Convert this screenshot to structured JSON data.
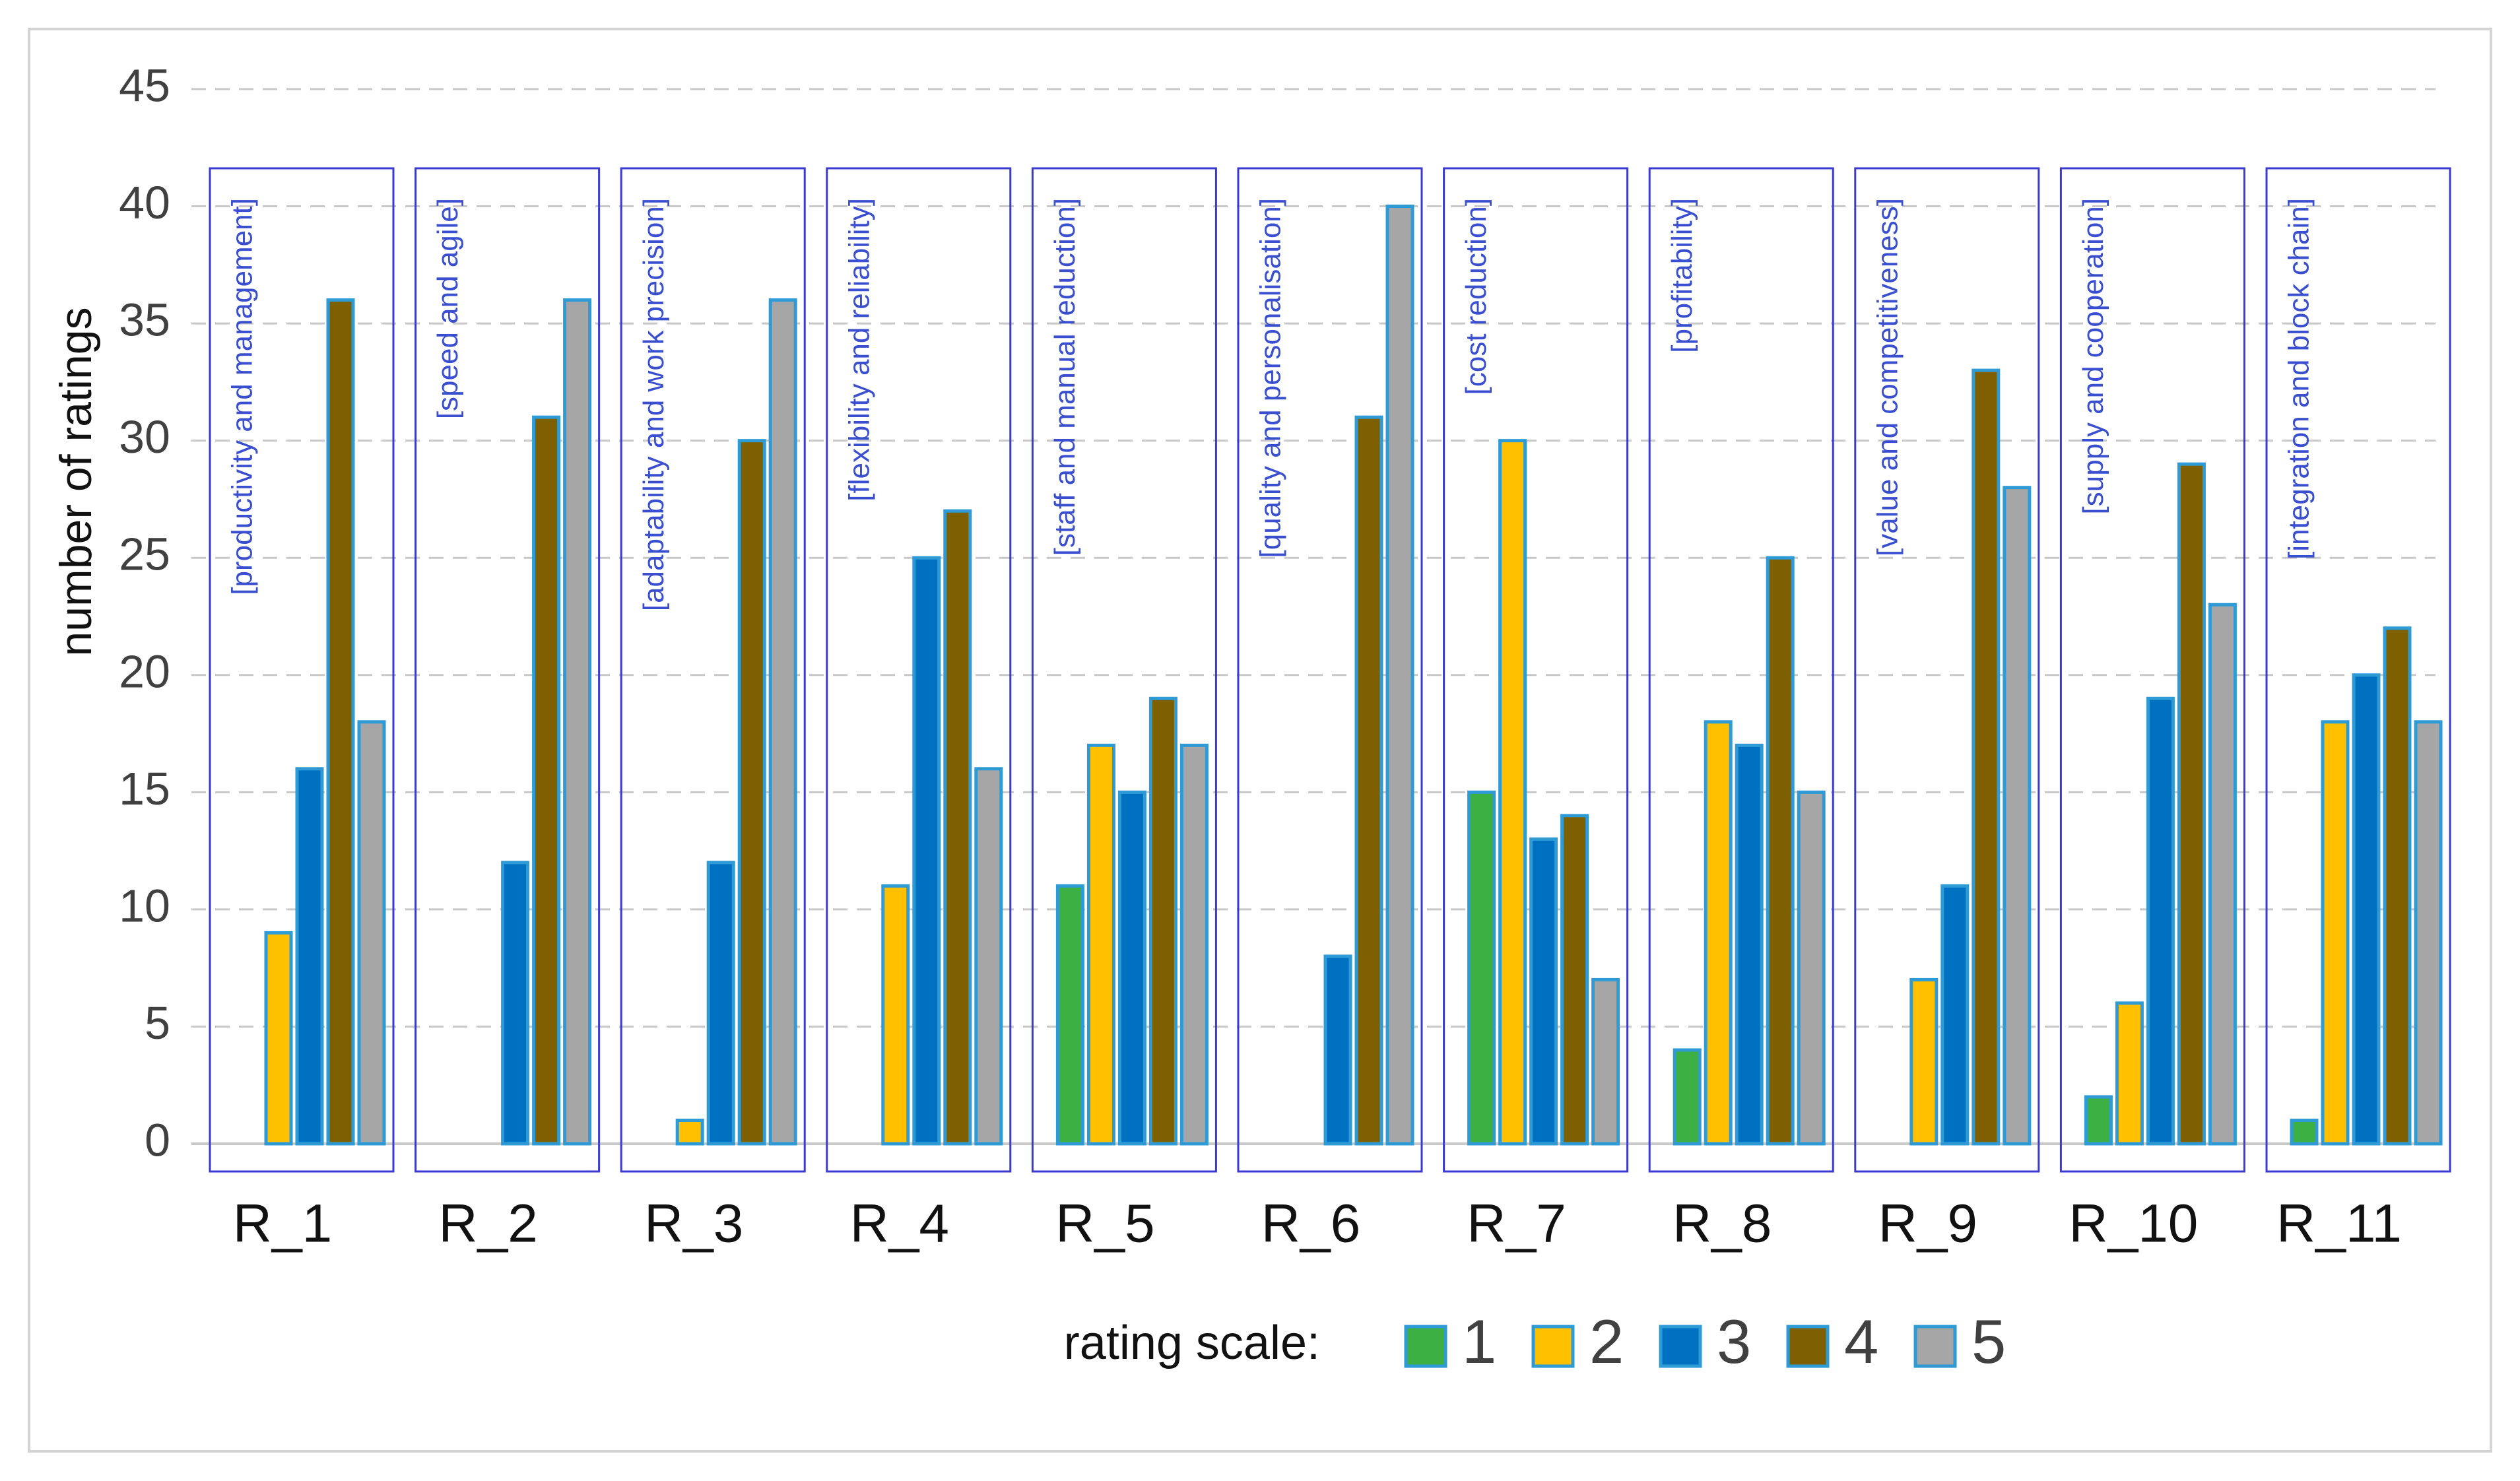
{
  "chart_data": {
    "type": "bar",
    "title": "",
    "xlabel": "",
    "ylabel": "number of ratings",
    "ylim": [
      0,
      45
    ],
    "yticks": [
      0,
      5,
      10,
      15,
      20,
      25,
      30,
      35,
      40,
      45
    ],
    "grid": true,
    "legend_position": "bottom-center",
    "legend_title": "rating scale:",
    "categories": [
      "R_1",
      "R_2",
      "R_3",
      "R_4",
      "R_5",
      "R_6",
      "R_7",
      "R_8",
      "R_9",
      "R_10",
      "R_11"
    ],
    "group_annotations": [
      "[productivity and management]",
      "[speed and agile]",
      "[adaptability and work precision]",
      "[flexibility and reliability]",
      "[staff and manual reduction]",
      "[quality and personalisation]",
      "[cost reduction]",
      "[profitability]",
      "[value and competitiveness]",
      "[supply and cooperation]",
      "[integration and block chain]"
    ],
    "series": [
      {
        "name": "1",
        "color": "#3cb043",
        "values": [
          0,
          0,
          0,
          0,
          11,
          0,
          15,
          4,
          0,
          2,
          1
        ]
      },
      {
        "name": "2",
        "color": "#ffc000",
        "values": [
          9,
          0,
          1,
          11,
          17,
          0,
          30,
          18,
          7,
          6,
          18
        ]
      },
      {
        "name": "3",
        "color": "#0070c0",
        "values": [
          16,
          12,
          12,
          25,
          15,
          8,
          13,
          17,
          11,
          19,
          20
        ]
      },
      {
        "name": "4",
        "color": "#7f6000",
        "values": [
          36,
          31,
          30,
          27,
          19,
          31,
          14,
          25,
          33,
          29,
          22
        ]
      },
      {
        "name": "5",
        "color": "#a6a6a6",
        "values": [
          18,
          36,
          36,
          16,
          17,
          40,
          7,
          15,
          28,
          23,
          18
        ]
      }
    ],
    "colors": {
      "bar_edge": "#2e9bd6",
      "annotation_text": "#3a4fcf",
      "annotation_box": "#3a3ad0",
      "grid": "#c8c8c8",
      "axis_text": "#404040",
      "category_text": "#111111"
    }
  }
}
